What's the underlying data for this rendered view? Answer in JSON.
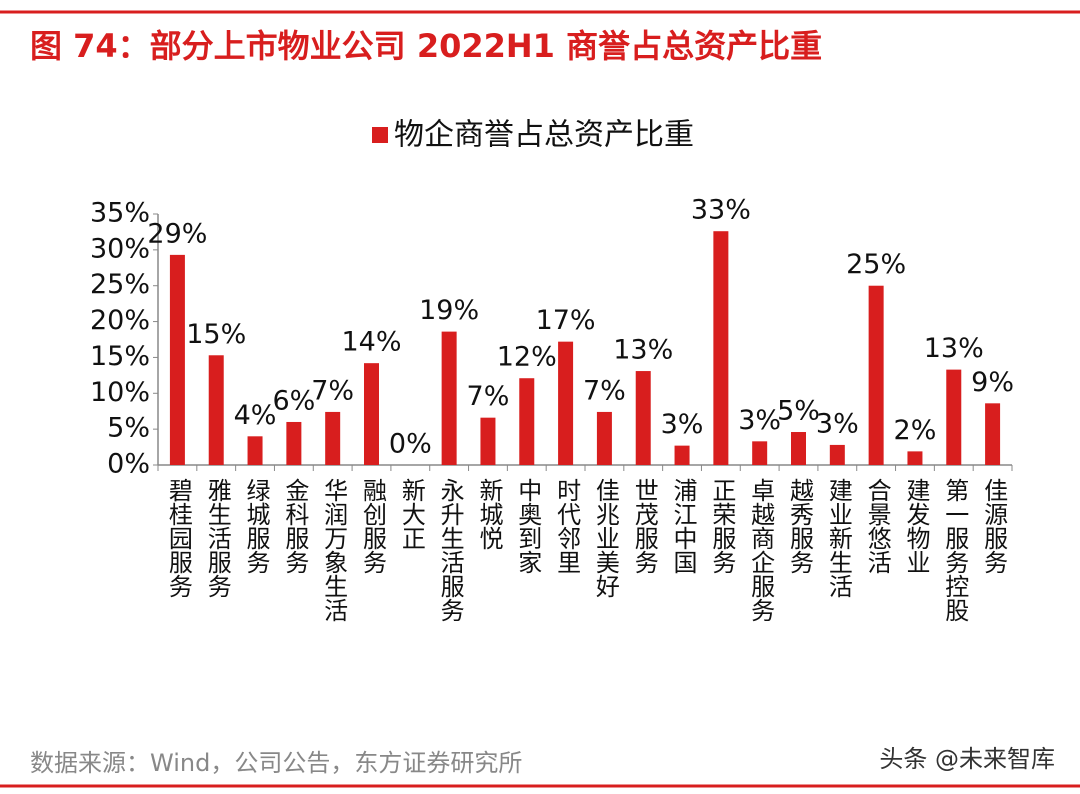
{
  "chart_data": {
    "type": "bar",
    "title": "图 74：部分上市物业公司 2022H1 商誉占总资产比重",
    "categories": [
      "碧桂园服务",
      "雅生活服务",
      "绿城服务",
      "金科服务",
      "华润万象生活",
      "融创服务",
      "新大正",
      "永升生活服务",
      "新城悦",
      "中奥到家",
      "时代邻里",
      "佳兆业美好",
      "世茂服务",
      "浦江中国",
      "正荣服务",
      "卓越商企服务",
      "越秀服务",
      "建业新生活",
      "合景悠活",
      "建发物业",
      "第一服务控股",
      "佳源服务"
    ],
    "series": [
      {
        "name": "物企商誉占总资产比重",
        "color": "#d81e1e",
        "values": [
          29.3,
          15.3,
          4,
          6,
          7.4,
          14.2,
          0,
          18.6,
          6.6,
          12.1,
          17.2,
          7.4,
          13.1,
          2.7,
          32.6,
          3.3,
          4.6,
          2.8,
          25,
          1.9,
          13.3,
          8.6
        ],
        "value_labels": [
          "29%",
          "15%",
          "4%",
          "6%",
          "7%",
          "14%",
          "0%",
          "19%",
          "7%",
          "12%",
          "17%",
          "7%",
          "13%",
          "3%",
          "33%",
          "3%",
          "5%",
          "3%",
          "25%",
          "2%",
          "13%",
          "9%"
        ]
      }
    ],
    "ylim": [
      0,
      35
    ],
    "yticks": [
      {
        "value": 0,
        "label": "0%"
      },
      {
        "value": 5,
        "label": "5%"
      },
      {
        "value": 10,
        "label": "10%"
      },
      {
        "value": 15,
        "label": "15%"
      },
      {
        "value": 20,
        "label": "20%"
      },
      {
        "value": 25,
        "label": "25%"
      },
      {
        "value": 30,
        "label": "30%"
      },
      {
        "value": 35,
        "label": "35%"
      }
    ],
    "grid": false,
    "legend": "top",
    "source": "数据来源：Wind，公司公告，东方证券研究所",
    "watermark": "头条 @未来智库"
  }
}
